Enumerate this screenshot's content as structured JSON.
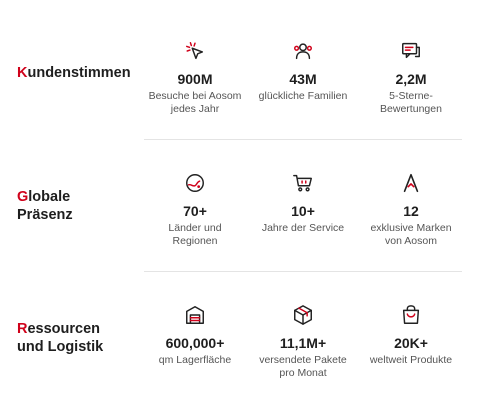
{
  "sections": [
    {
      "title_first": "K",
      "title_rest": "undenstimmen",
      "stats": [
        {
          "icon": "cursor-click-icon",
          "value": "900M",
          "desc": "Besuche bei Aosom jedes Jahr"
        },
        {
          "icon": "family-icon",
          "value": "43M",
          "desc": "glückliche Familien"
        },
        {
          "icon": "review-icon",
          "value": "2,2M",
          "desc": "5-Sterne-Bewertungen"
        }
      ]
    },
    {
      "title_first": "G",
      "title_rest": "lobale Präsenz",
      "stats": [
        {
          "icon": "globe-icon",
          "value": "70+",
          "desc": "Länder und Regionen"
        },
        {
          "icon": "shopping-cart-icon",
          "value": "10+",
          "desc": "Jahre der Service"
        },
        {
          "icon": "brand-a-icon",
          "value": "12",
          "desc": "exklusive Marken von Aosom"
        }
      ]
    },
    {
      "title_first": "R",
      "title_rest": "essourcen und Logistik",
      "stats": [
        {
          "icon": "warehouse-icon",
          "value": "600,000+",
          "desc": "qm Lagerfläche"
        },
        {
          "icon": "package-icon",
          "value": "11,1M+",
          "desc": "versendete Pakete pro Monat"
        },
        {
          "icon": "shopping-bag-icon",
          "value": "20K+",
          "desc": "weltweit Produkte"
        }
      ]
    }
  ],
  "colors": {
    "accent": "#d0021b",
    "text": "#1e1e1e",
    "muted": "#555555",
    "divider": "#e4e4e4"
  }
}
